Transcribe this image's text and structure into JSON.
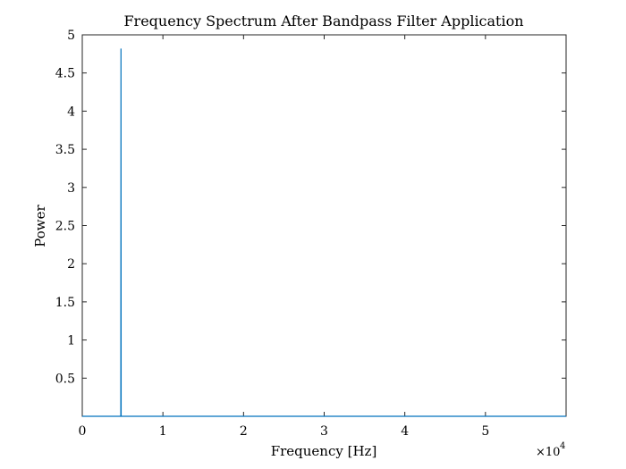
{
  "chart_data": {
    "type": "line",
    "title": "Frequency Spectrum After Bandpass Filter Application",
    "xlabel": "Frequency [Hz]",
    "ylabel": "Power",
    "x_exponent_label": "×10",
    "x_exponent_power": "4",
    "xlim": [
      0,
      60000
    ],
    "ylim": [
      0,
      5
    ],
    "x_ticks": [
      0,
      10000,
      20000,
      30000,
      40000,
      50000
    ],
    "x_tick_labels": [
      "0",
      "1",
      "2",
      "3",
      "4",
      "5"
    ],
    "y_ticks": [
      0.5,
      1,
      1.5,
      2,
      2.5,
      3,
      3.5,
      4,
      4.5,
      5
    ],
    "y_tick_labels": [
      "0.5",
      "1",
      "1.5",
      "2",
      "2.5",
      "3",
      "3.5",
      "4",
      "4.5",
      "5"
    ],
    "series": [
      {
        "color": "#0072bd",
        "x": [
          0,
          4780,
          4800,
          4820,
          60000
        ],
        "y": [
          0,
          0,
          4.82,
          0,
          0
        ]
      }
    ],
    "grid": false
  }
}
